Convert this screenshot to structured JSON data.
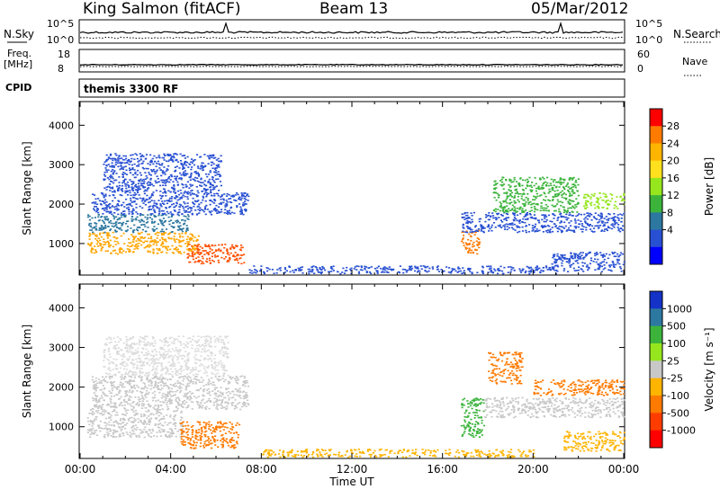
{
  "header": {
    "station": "King Salmon (fitACF)",
    "beam": "Beam 13",
    "date": "05/Mar/2012"
  },
  "strips": {
    "nsky_label": "N.Sky",
    "nsearch_label": "N.Search",
    "freq_label_1": "Freq.",
    "freq_label_2": "[MHz]",
    "nave_label": "Nave",
    "cpid_label": "CPID",
    "cpid_text": "themis 3300 RF",
    "noise_ticks": [
      "10^5",
      "10^0"
    ],
    "freq_ticks": [
      "18",
      "8"
    ],
    "nave_ticks": [
      "60",
      "0"
    ]
  },
  "chart_data": [
    {
      "type": "heatmap",
      "name": "power",
      "ylabel": "Slant Range [km]",
      "xlabel": "",
      "ylim": [
        200,
        4600
      ],
      "yticks": [
        1000,
        2000,
        3000,
        4000
      ],
      "xlim_hours": [
        0,
        24
      ],
      "colorbar": {
        "label": "Power [dB]",
        "ticks": [
          "28",
          "24",
          "20",
          "16",
          "12",
          "8",
          "4"
        ],
        "colors": [
          "#ff0000",
          "#ff7a00",
          "#ffb400",
          "#ffe01e",
          "#96e61e",
          "#3cb43c",
          "#2d78a0",
          "#2850d2",
          "#0000ff"
        ]
      },
      "regions": [
        {
          "t0": 0.3,
          "t1": 5.2,
          "r0": 750,
          "r1": 1300,
          "color": "#ffa500"
        },
        {
          "t0": 0.3,
          "t1": 4.8,
          "r0": 1300,
          "r1": 1750,
          "color": "#2d78a0"
        },
        {
          "t0": 0.5,
          "t1": 7.4,
          "r0": 1750,
          "r1": 2300,
          "color": "#2850d2"
        },
        {
          "t0": 1.0,
          "t1": 6.2,
          "r0": 2300,
          "r1": 3300,
          "color": "#2850d2"
        },
        {
          "t0": 4.7,
          "t1": 7.2,
          "r0": 500,
          "r1": 1000,
          "color": "#ff5000"
        },
        {
          "t0": 16.8,
          "t1": 17.6,
          "r0": 750,
          "r1": 1350,
          "color": "#ff7a00"
        },
        {
          "t0": 16.8,
          "t1": 24.0,
          "r0": 1300,
          "r1": 1800,
          "color": "#2850d2"
        },
        {
          "t0": 22.2,
          "t1": 24.0,
          "r0": 1900,
          "r1": 2300,
          "color": "#96e61e"
        },
        {
          "t0": 18.2,
          "t1": 22.0,
          "r0": 1800,
          "r1": 2700,
          "color": "#3cb43c"
        },
        {
          "t0": 20.8,
          "t1": 24.0,
          "r0": 300,
          "r1": 800,
          "color": "#2850d2"
        },
        {
          "t0": 7.4,
          "t1": 21.0,
          "r0": 250,
          "r1": 450,
          "color": "#2850d2"
        }
      ]
    },
    {
      "type": "heatmap",
      "name": "velocity",
      "ylabel": "Slant Range [km]",
      "xlabel": "Time UT",
      "ylim": [
        200,
        4600
      ],
      "yticks": [
        1000,
        2000,
        3000,
        4000
      ],
      "xlim_hours": [
        0,
        24
      ],
      "xticks": [
        "00:00",
        "04:00",
        "08:00",
        "12:00",
        "16:00",
        "20:00",
        "00:00"
      ],
      "colorbar": {
        "label": "Velocity [m s⁻¹]",
        "ticks": [
          "1000",
          "500",
          "100",
          "25",
          "-25",
          "-100",
          "-500",
          "-1000"
        ],
        "colors": [
          "#1432c8",
          "#2d78a0",
          "#3cb43c",
          "#96e61e",
          "#c8c8c8",
          "#ffb400",
          "#ff7a00",
          "#ff3c00",
          "#ff0000"
        ]
      },
      "regions": [
        {
          "t0": 0.3,
          "t1": 4.5,
          "r0": 750,
          "r1": 1450,
          "color": "#c8c8c8"
        },
        {
          "t0": 0.5,
          "t1": 7.4,
          "r0": 1450,
          "r1": 2300,
          "color": "#c8c8c8"
        },
        {
          "t0": 1.0,
          "t1": 6.5,
          "r0": 2300,
          "r1": 3300,
          "color": "#dcdcdc"
        },
        {
          "t0": 4.4,
          "t1": 7.0,
          "r0": 450,
          "r1": 1150,
          "color": "#ff7a00"
        },
        {
          "t0": 16.8,
          "t1": 17.8,
          "r0": 750,
          "r1": 1750,
          "color": "#3cb43c"
        },
        {
          "t0": 17.8,
          "t1": 24.0,
          "r0": 1250,
          "r1": 1750,
          "color": "#c8c8c8"
        },
        {
          "t0": 20.0,
          "t1": 24.0,
          "r0": 1800,
          "r1": 2200,
          "color": "#ff7a00"
        },
        {
          "t0": 18.0,
          "t1": 19.5,
          "r0": 2100,
          "r1": 2900,
          "color": "#ff7a00"
        },
        {
          "t0": 21.3,
          "t1": 24.0,
          "r0": 400,
          "r1": 900,
          "color": "#ffb400"
        },
        {
          "t0": 8.0,
          "t1": 20.0,
          "r0": 250,
          "r1": 450,
          "color": "#ffb400"
        }
      ]
    }
  ]
}
